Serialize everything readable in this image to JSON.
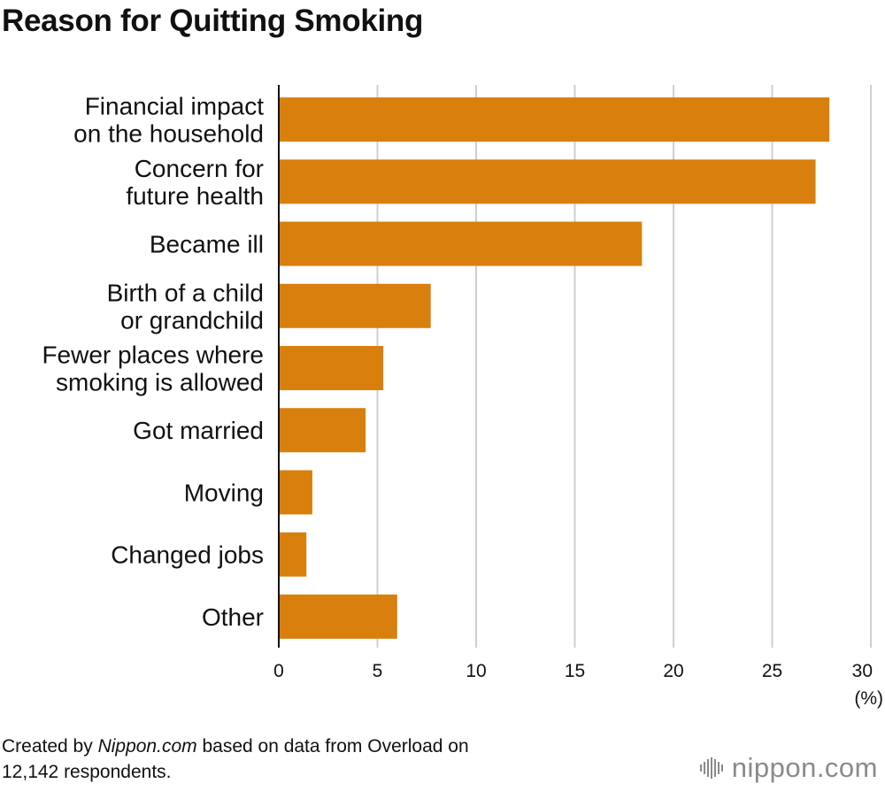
{
  "title": "Reason for Quitting Smoking",
  "chart_data": {
    "type": "bar",
    "orientation": "horizontal",
    "title": "Reason for Quitting Smoking",
    "categories": [
      [
        "Financial impact",
        "on the household"
      ],
      [
        "Concern for",
        "future health"
      ],
      [
        "Became ill"
      ],
      [
        "Birth of a child",
        "or grandchild"
      ],
      [
        "Fewer places where",
        "smoking is allowed"
      ],
      [
        "Got married"
      ],
      [
        "Moving"
      ],
      [
        "Changed jobs"
      ],
      [
        "Other"
      ]
    ],
    "values": [
      27.9,
      27.2,
      18.4,
      7.7,
      5.3,
      4.4,
      1.7,
      1.4,
      6.0
    ],
    "xlim": [
      0,
      30
    ],
    "xticks": [
      "0",
      "5",
      "10",
      "15",
      "20",
      "25",
      "30"
    ],
    "xunit": "(%)",
    "bar_color": "#d97f0d",
    "grid": true
  },
  "footer": {
    "prefix": "Created by ",
    "source_site": "Nippon.com",
    "suffix": " based on data from Overload on",
    "line2": "12,142 respondents."
  },
  "logo": {
    "name": "nippon",
    "tld": ".com"
  }
}
